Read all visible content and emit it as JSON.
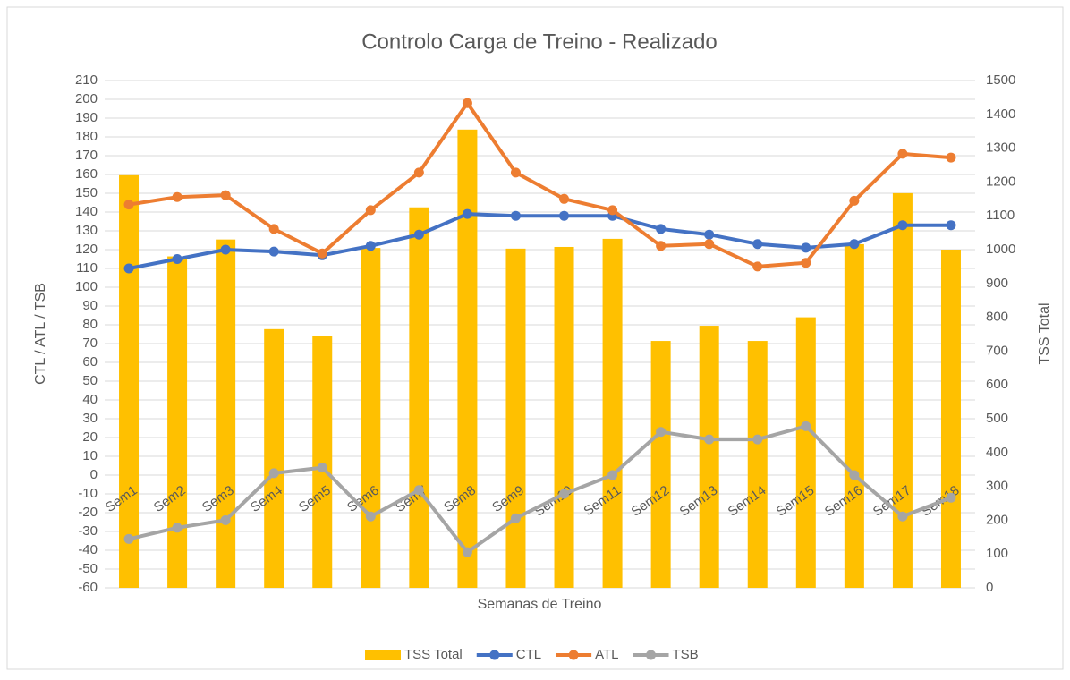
{
  "chart_data": {
    "type": "combo",
    "title": "Controlo Carga de Treino - Realizado",
    "x_label": "Semanas de Treino",
    "y_label": "CTL / ATL / TSB",
    "y2_label": "TSS Total",
    "categories": [
      "Sem1",
      "Sem2",
      "Sem3",
      "Sem4",
      "Sem5",
      "Sem6",
      "Sem7",
      "Sem8",
      "Sem9",
      "Sem10",
      "Sem11",
      "Sem12",
      "Sem13",
      "Sem14",
      "Sem15",
      "Sem16",
      "Sem17",
      "Sem18"
    ],
    "series": [
      {
        "name": "TSS Total",
        "kind": "bar",
        "axis": "y2",
        "color": "#ffc000",
        "values": [
          1220,
          980,
          1030,
          765,
          745,
          1005,
          1125,
          1355,
          1003,
          1008,
          1032,
          730,
          775,
          730,
          800,
          1016,
          1167,
          1000
        ]
      },
      {
        "name": "CTL",
        "kind": "line",
        "color": "#4472c4",
        "values": [
          110,
          115,
          120,
          119,
          117,
          122,
          128,
          139,
          138,
          138,
          138,
          131,
          128,
          123,
          121,
          123,
          133,
          133
        ]
      },
      {
        "name": "ATL",
        "kind": "line",
        "color": "#ed7d31",
        "values": [
          144,
          148,
          149,
          131,
          118,
          141,
          161,
          198,
          161,
          147,
          141,
          122,
          123,
          111,
          113,
          146,
          171,
          169
        ]
      },
      {
        "name": "TSB",
        "kind": "line",
        "color": "#a5a5a5",
        "values": [
          -34,
          -28,
          -24,
          1,
          4,
          -22,
          -8,
          -41,
          -23,
          -10,
          0,
          23,
          19,
          19,
          26,
          0,
          -22,
          -12
        ]
      }
    ],
    "ylim": [
      -60,
      210
    ],
    "yticks": [
      -60,
      -50,
      -40,
      -30,
      -20,
      -10,
      0,
      10,
      20,
      30,
      40,
      50,
      60,
      70,
      80,
      90,
      100,
      110,
      120,
      130,
      140,
      150,
      160,
      170,
      180,
      190,
      200,
      210
    ],
    "y2lim": [
      0,
      1500
    ],
    "y2ticks": [
      0,
      100,
      200,
      300,
      400,
      500,
      600,
      700,
      800,
      900,
      1000,
      1100,
      1200,
      1300,
      1400,
      1500
    ],
    "grid": true,
    "legend": "bottom"
  }
}
